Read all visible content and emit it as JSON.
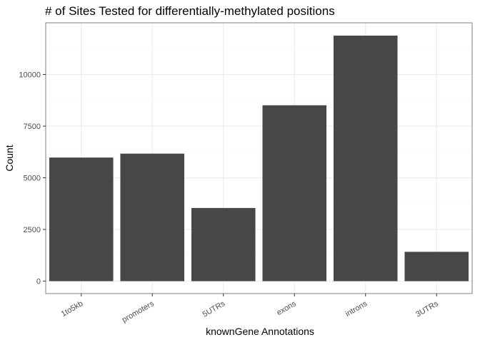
{
  "chart_data": {
    "type": "bar",
    "title": "# of Sites Tested for differentially-methylated positions",
    "xlabel": "knownGene Annotations",
    "ylabel": "Count",
    "categories": [
      "1to5kb",
      "promoters",
      "5UTRs",
      "exons",
      "introns",
      "3UTRs"
    ],
    "values": [
      5980,
      6170,
      3540,
      8510,
      11880,
      1420
    ],
    "ylim": [
      -600,
      12500
    ],
    "yticks": [
      0,
      2500,
      5000,
      7500,
      10000
    ],
    "ytick_labels": [
      "0",
      "2500",
      "5000",
      "7500",
      "10000"
    ],
    "grid": true,
    "colors": {
      "bar": "#474747",
      "panel_border": "#7f7f7f",
      "grid_major": "#ebebeb",
      "grid_minor": "#f5f5f5",
      "tick_text": "#4d4d4d"
    }
  }
}
